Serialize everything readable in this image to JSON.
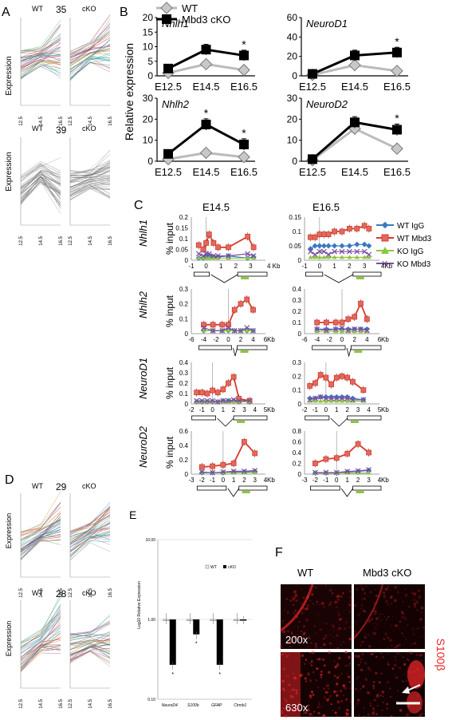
{
  "panel_letters": {
    "a": "A",
    "b": "B",
    "c": "C",
    "d": "D",
    "e": "E",
    "f": "F"
  },
  "panel_a": {
    "ylabel": "Expression",
    "top": {
      "wt": "WT",
      "count": "35",
      "cko": "cKO"
    },
    "bottom": {
      "wt": "WT",
      "count": "39",
      "cko": "cKO"
    },
    "xticks": [
      "12.5",
      "14.5",
      "16.5"
    ]
  },
  "panel_d": {
    "ylabel": "Expression",
    "top": {
      "wt": "WT",
      "count": "29",
      "cko": "cKO"
    },
    "bottom": {
      "wt": "WT",
      "count": "28",
      "cko": "cKO"
    },
    "xticks": [
      "12.5",
      "14.5",
      "16.5"
    ]
  },
  "colors": {
    "wt_line": "#bbbbbb",
    "cko_line": "#000000",
    "wt_igg": "#3a78c2",
    "wt_mbd3": "#d83a2b",
    "ko_igg": "#8cc63f",
    "ko_mbd3": "#7a4ea0",
    "f_red": "#e8262a"
  },
  "chart_data": [
    {
      "type": "line",
      "panel": "B",
      "ylabel": "Relative expression",
      "legend": [
        "WT",
        "Mbd3 cKO"
      ],
      "subplots": [
        {
          "gene": "Nhlh1",
          "categories": [
            "E12.5",
            "E14.5",
            "E16.5"
          ],
          "ylim": [
            0,
            20
          ],
          "yticks": [
            "0",
            "5",
            "10",
            "15",
            "20"
          ],
          "series": [
            {
              "name": "WT",
              "values": [
                1,
                4,
                2
              ]
            },
            {
              "name": "Mbd3 cKO",
              "values": [
                2.5,
                9,
                7
              ]
            }
          ],
          "star": [
            false,
            false,
            true
          ]
        },
        {
          "gene": "NeuroD1",
          "categories": [
            "E12.5",
            "E14.5",
            "E16.5"
          ],
          "ylim": [
            0,
            60
          ],
          "yticks": [
            "0",
            "20",
            "40",
            "60"
          ],
          "series": [
            {
              "name": "WT",
              "values": [
                1,
                11,
                5
              ]
            },
            {
              "name": "Mbd3 cKO",
              "values": [
                2,
                21,
                24
              ]
            }
          ],
          "star": [
            false,
            false,
            true
          ]
        },
        {
          "gene": "Nhlh2",
          "categories": [
            "E12.5",
            "E14.5",
            "E16.5"
          ],
          "ylim": [
            0,
            30
          ],
          "yticks": [
            "0",
            "10",
            "20",
            "30"
          ],
          "series": [
            {
              "name": "WT",
              "values": [
                1,
                4,
                2
              ]
            },
            {
              "name": "Mbd3 cKO",
              "values": [
                3.5,
                17.5,
                8
              ]
            }
          ],
          "star": [
            false,
            true,
            true
          ]
        },
        {
          "gene": "NeuroD2",
          "categories": [
            "E12.5",
            "E14.5",
            "E16.5"
          ],
          "ylim": [
            0,
            30
          ],
          "yticks": [
            "0",
            "10",
            "20",
            "30"
          ],
          "series": [
            {
              "name": "WT",
              "values": [
                0.5,
                15.5,
                6
              ]
            },
            {
              "name": "Mbd3 cKO",
              "values": [
                1,
                18.5,
                15
              ]
            }
          ],
          "star": [
            false,
            false,
            true
          ]
        }
      ]
    },
    {
      "type": "line",
      "panel": "C",
      "ylabel": "% input",
      "columns": [
        "E14.5",
        "E16.5"
      ],
      "legend": [
        "WT IgG",
        "WT Mbd3",
        "KO IgG",
        "KO Mbd3"
      ],
      "subplots": [
        {
          "gene": "Nhlh1",
          "stage": "E14.5",
          "ylim": [
            0,
            0.2
          ],
          "yticks": [
            "0",
            "0.05",
            "0.1",
            "0.15",
            "0.2"
          ],
          "xticks": [
            "-1",
            "0",
            "1",
            "2",
            "3"
          ],
          "xunit": "4 Kb",
          "x": [
            -0.5,
            -0.2,
            0,
            0.2,
            0.5,
            0.8,
            1.5,
            2.8,
            3.2
          ],
          "series": [
            {
              "name": "WT IgG",
              "values": [
                0.01,
                0.01,
                0.02,
                0.015,
                0.015,
                0.015,
                0.02,
                0.01,
                0.015
              ]
            },
            {
              "name": "WT Mbd3",
              "values": [
                0.07,
                0.05,
                0.08,
                0.12,
                0.08,
                0.06,
                0.06,
                0.11,
                0.06
              ]
            },
            {
              "name": "KO IgG",
              "values": [
                0.01,
                0.01,
                0.01,
                0.01,
                0.01,
                0.01,
                0.01,
                0.01,
                0.01
              ]
            },
            {
              "name": "KO Mbd3",
              "values": [
                0.03,
                0.02,
                0.03,
                0.03,
                0.02,
                0.02,
                0.02,
                0.03,
                0.02
              ]
            }
          ]
        },
        {
          "gene": "Nhlh1",
          "stage": "E16.5",
          "ylim": [
            0,
            0.15
          ],
          "yticks": [
            "0",
            "0.05",
            "0.1",
            "0.15"
          ],
          "xticks": [
            "-1",
            "0",
            "1",
            "2",
            "3"
          ],
          "xunit": "4Kb",
          "x": [
            -0.6,
            -0.3,
            0,
            0.3,
            0.6,
            1,
            1.5,
            2,
            2.5,
            3,
            3.3
          ],
          "series": [
            {
              "name": "WT IgG",
              "values": [
                0.04,
                0.05,
                0.05,
                0.05,
                0.05,
                0.05,
                0.05,
                0.05,
                0.055,
                0.055,
                0.05
              ]
            },
            {
              "name": "WT Mbd3",
              "values": [
                0.08,
                0.08,
                0.09,
                0.09,
                0.09,
                0.1,
                0.1,
                0.11,
                0.11,
                0.12,
                0.11
              ]
            },
            {
              "name": "KO IgG",
              "values": [
                0.01,
                0.01,
                0.01,
                0.01,
                0.01,
                0.01,
                0.01,
                0.01,
                0.01,
                0.01,
                0.01
              ]
            },
            {
              "name": "KO Mbd3",
              "values": [
                0.03,
                0.02,
                0.03,
                0.03,
                0.02,
                0.03,
                0.03,
                0.03,
                0.03,
                0.03,
                0.02
              ]
            }
          ]
        },
        {
          "gene": "Nhlh2",
          "stage": "E14.5",
          "ylim": [
            0,
            0.3
          ],
          "yticks": [
            "0",
            "0.1",
            "0.2",
            "0.3"
          ],
          "xticks": [
            "-6",
            "-4",
            "-2",
            "0",
            "2",
            "4",
            "6"
          ],
          "xunit": "Kb",
          "x": [
            -4,
            -2.5,
            -1,
            0,
            1,
            2,
            3,
            4
          ],
          "series": [
            {
              "name": "WT IgG",
              "values": [
                0.02,
                0.02,
                0.02,
                0.02,
                0.02,
                0.02,
                0.02,
                0.02
              ]
            },
            {
              "name": "WT Mbd3",
              "values": [
                0.06,
                0.06,
                0.06,
                0.06,
                0.16,
                0.2,
                0.23,
                0.16
              ]
            },
            {
              "name": "KO IgG",
              "values": [
                0.02,
                0.02,
                0.02,
                0.02,
                0.02,
                0.02,
                0.02,
                0.02
              ]
            },
            {
              "name": "KO Mbd3",
              "values": [
                0.04,
                0.02,
                0.02,
                0.04,
                0.02,
                0.02,
                0.04,
                0.02
              ]
            }
          ]
        },
        {
          "gene": "Nhlh2",
          "stage": "E16.5",
          "ylim": [
            0,
            0.4
          ],
          "yticks": [
            "0",
            "0.1",
            "0.2",
            "0.3",
            "0.4"
          ],
          "xticks": [
            "-6",
            "-4",
            "-2",
            "0",
            "2",
            "4",
            "6"
          ],
          "xunit": "Kb",
          "x": [
            -4,
            -2.5,
            -1,
            0,
            1,
            2,
            3,
            4
          ],
          "series": [
            {
              "name": "WT IgG",
              "values": [
                0.04,
                0.04,
                0.04,
                0.04,
                0.04,
                0.04,
                0.04,
                0.04
              ]
            },
            {
              "name": "WT Mbd3",
              "values": [
                0.1,
                0.1,
                0.1,
                0.1,
                0.13,
                0.15,
                0.27,
                0.13
              ]
            },
            {
              "name": "KO IgG",
              "values": [
                0.02,
                0.02,
                0.02,
                0.02,
                0.02,
                0.02,
                0.02,
                0.02
              ]
            },
            {
              "name": "KO Mbd3",
              "values": [
                0.04,
                0.03,
                0.04,
                0.05,
                0.03,
                0.04,
                0.04,
                0.03
              ]
            }
          ]
        },
        {
          "gene": "NeuroD1",
          "stage": "E14.5",
          "ylim": [
            0,
            0.4
          ],
          "yticks": [
            "0",
            "0.1",
            "0.2",
            "0.3",
            "0.4"
          ],
          "xticks": [
            "-2",
            "-1",
            "0",
            "1",
            "2",
            "3",
            "4",
            "5"
          ],
          "xunit": "Kb",
          "x": [
            -1.5,
            -1,
            -0.5,
            0,
            0.5,
            1,
            1.5,
            2,
            2.5,
            3.5
          ],
          "series": [
            {
              "name": "WT IgG",
              "values": [
                0.02,
                0.02,
                0.02,
                0.02,
                0.02,
                0.03,
                0.03,
                0.03,
                0.02,
                0.02
              ]
            },
            {
              "name": "WT Mbd3",
              "values": [
                0.11,
                0.11,
                0.1,
                0.13,
                0.11,
                0.14,
                0.2,
                0.26,
                0.05,
                0.03
              ]
            },
            {
              "name": "KO IgG",
              "values": [
                0.02,
                0.02,
                0.02,
                0.02,
                0.02,
                0.02,
                0.02,
                0.02,
                0.02,
                0.02
              ]
            },
            {
              "name": "KO Mbd3",
              "values": [
                0.03,
                0.03,
                0.03,
                0.03,
                0.02,
                0.03,
                0.03,
                0.04,
                0.03,
                0.03
              ]
            }
          ]
        },
        {
          "gene": "NeuroD1",
          "stage": "E16.5",
          "ylim": [
            0,
            0.3
          ],
          "yticks": [
            "0",
            "0.1",
            "0.2",
            "0.3"
          ],
          "xticks": [
            "-2",
            "-1",
            "0",
            "1",
            "2",
            "3",
            "4",
            "5"
          ],
          "xunit": "Kb",
          "x": [
            -1.5,
            -1,
            -0.5,
            0,
            0.5,
            1,
            1.5,
            2,
            2.5,
            3.5
          ],
          "series": [
            {
              "name": "WT IgG",
              "values": [
                0.04,
                0.04,
                0.05,
                0.05,
                0.05,
                0.05,
                0.05,
                0.05,
                0.04,
                0.03
              ]
            },
            {
              "name": "WT Mbd3",
              "values": [
                0.13,
                0.15,
                0.21,
                0.19,
                0.14,
                0.19,
                0.2,
                0.19,
                0.16,
                0.1
              ]
            },
            {
              "name": "KO IgG",
              "values": [
                0.02,
                0.02,
                0.02,
                0.02,
                0.02,
                0.02,
                0.02,
                0.02,
                0.02,
                0.02
              ]
            },
            {
              "name": "KO Mbd3",
              "values": [
                0.03,
                0.04,
                0.05,
                0.04,
                0.04,
                0.04,
                0.04,
                0.04,
                0.03,
                0.03
              ]
            }
          ]
        },
        {
          "gene": "NeuroD2",
          "stage": "E14.5",
          "ylim": [
            0,
            0.6
          ],
          "yticks": [
            "0",
            "0.2",
            "0.4",
            "0.6"
          ],
          "xticks": [
            "-3",
            "-2",
            "-1",
            "0",
            "1",
            "2",
            "3",
            "4"
          ],
          "xunit": "Kb",
          "x": [
            -2,
            -1,
            0,
            1,
            2,
            3
          ],
          "series": [
            {
              "name": "WT IgG",
              "values": [
                0.02,
                0.02,
                0.02,
                0.03,
                0.03,
                0.04
              ]
            },
            {
              "name": "WT Mbd3",
              "values": [
                0.1,
                0.11,
                0.13,
                0.15,
                0.45,
                0.29
              ]
            },
            {
              "name": "KO IgG",
              "values": [
                0.02,
                0.02,
                0.02,
                0.02,
                0.02,
                0.02
              ]
            },
            {
              "name": "KO Mbd3",
              "values": [
                0.03,
                0.02,
                0.03,
                0.04,
                0.04,
                0.05
              ]
            }
          ]
        },
        {
          "gene": "NeuroD2",
          "stage": "E16.5",
          "ylim": [
            0,
            0.8
          ],
          "yticks": [
            "0",
            "0.2",
            "0.4",
            "0.6",
            "0.8"
          ],
          "xticks": [
            "-3",
            "-2",
            "-1",
            "0",
            "1",
            "2",
            "3",
            "4"
          ],
          "xunit": "Kb",
          "x": [
            -2,
            -1,
            0,
            1,
            2,
            3
          ],
          "series": [
            {
              "name": "WT IgG",
              "values": [
                0.02,
                0.02,
                0.02,
                0.04,
                0.05,
                0.07
              ]
            },
            {
              "name": "WT Mbd3",
              "values": [
                0.2,
                0.28,
                0.3,
                0.38,
                0.56,
                0.4
              ]
            },
            {
              "name": "KO IgG",
              "values": [
                0.02,
                0.02,
                0.02,
                0.02,
                0.02,
                0.02
              ]
            },
            {
              "name": "KO Mbd3",
              "values": [
                0.03,
                0.03,
                0.03,
                0.05,
                0.06,
                0.08
              ]
            }
          ]
        }
      ]
    },
    {
      "type": "bar",
      "panel": "E",
      "ylabel": "Log10 Relative Expression",
      "scale": "log",
      "ylim": [
        0.1,
        10
      ],
      "yticks": [
        "0.10",
        "1.00",
        "10.00"
      ],
      "categories": [
        "NeuroD4",
        "S100b",
        "GFAP",
        "Ctnnb1"
      ],
      "legend": [
        "WT",
        "cKO"
      ],
      "series": [
        {
          "name": "WT",
          "values": [
            1,
            1,
            1,
            1
          ]
        },
        {
          "name": "cKO",
          "values": [
            0.27,
            0.65,
            0.27,
            1
          ]
        }
      ],
      "star": [
        true,
        true,
        true,
        false
      ]
    }
  ],
  "panel_f": {
    "wt": "WT",
    "cko": "Mbd3 cKO",
    "mag_top": "200x",
    "mag_bottom": "630x",
    "marker": "S100β"
  }
}
